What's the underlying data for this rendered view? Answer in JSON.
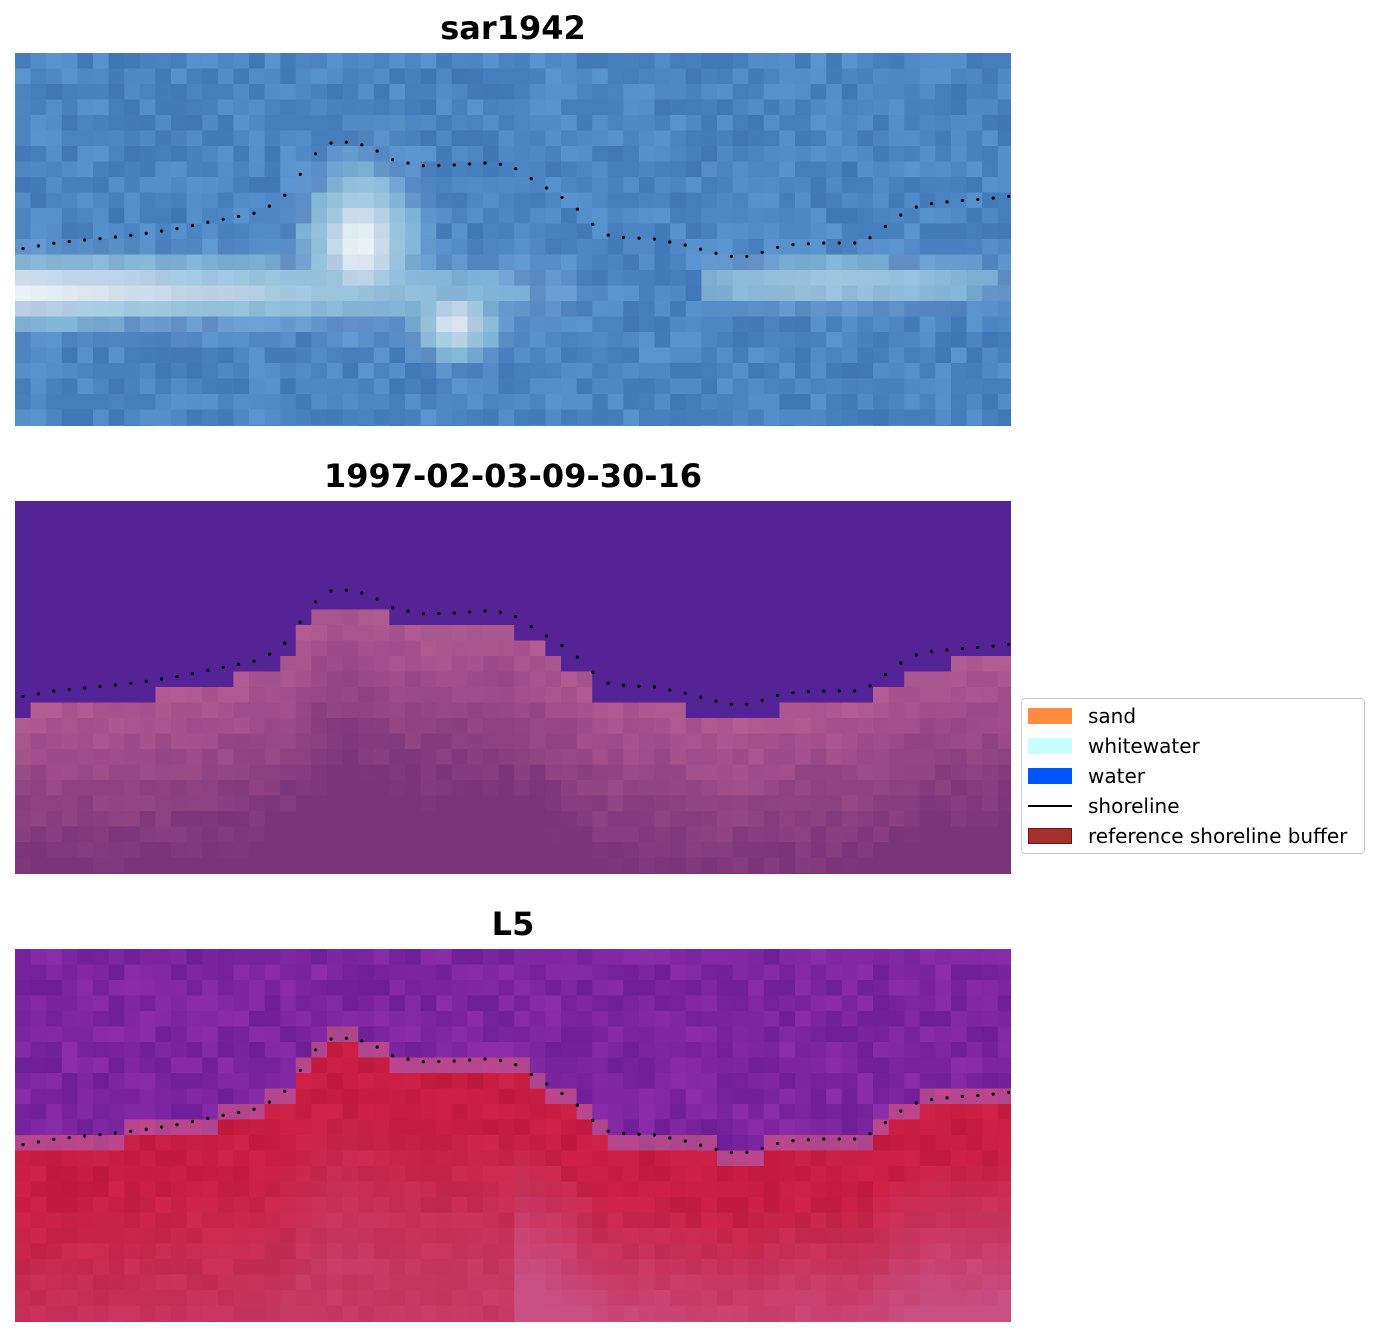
{
  "panels": [
    {
      "title": "sar1942",
      "style": "rgb"
    },
    {
      "title": "1997-02-03-09-30-16",
      "style": "classified"
    },
    {
      "title": "L5",
      "style": "ndwi"
    }
  ],
  "shoreline_color": "#000000",
  "legend": {
    "items": [
      {
        "label": "sand",
        "kind": "patch",
        "color": "#ff8c3c"
      },
      {
        "label": "whitewater",
        "kind": "patch",
        "color": "#c8fdfa"
      },
      {
        "label": "water",
        "kind": "patch",
        "color": "#0055ff"
      },
      {
        "label": "shoreline",
        "kind": "line",
        "color": "#000000"
      },
      {
        "label": "reference shoreline buffer",
        "kind": "patch",
        "color": "#a3302e",
        "edge": "#7a1010"
      }
    ]
  }
}
